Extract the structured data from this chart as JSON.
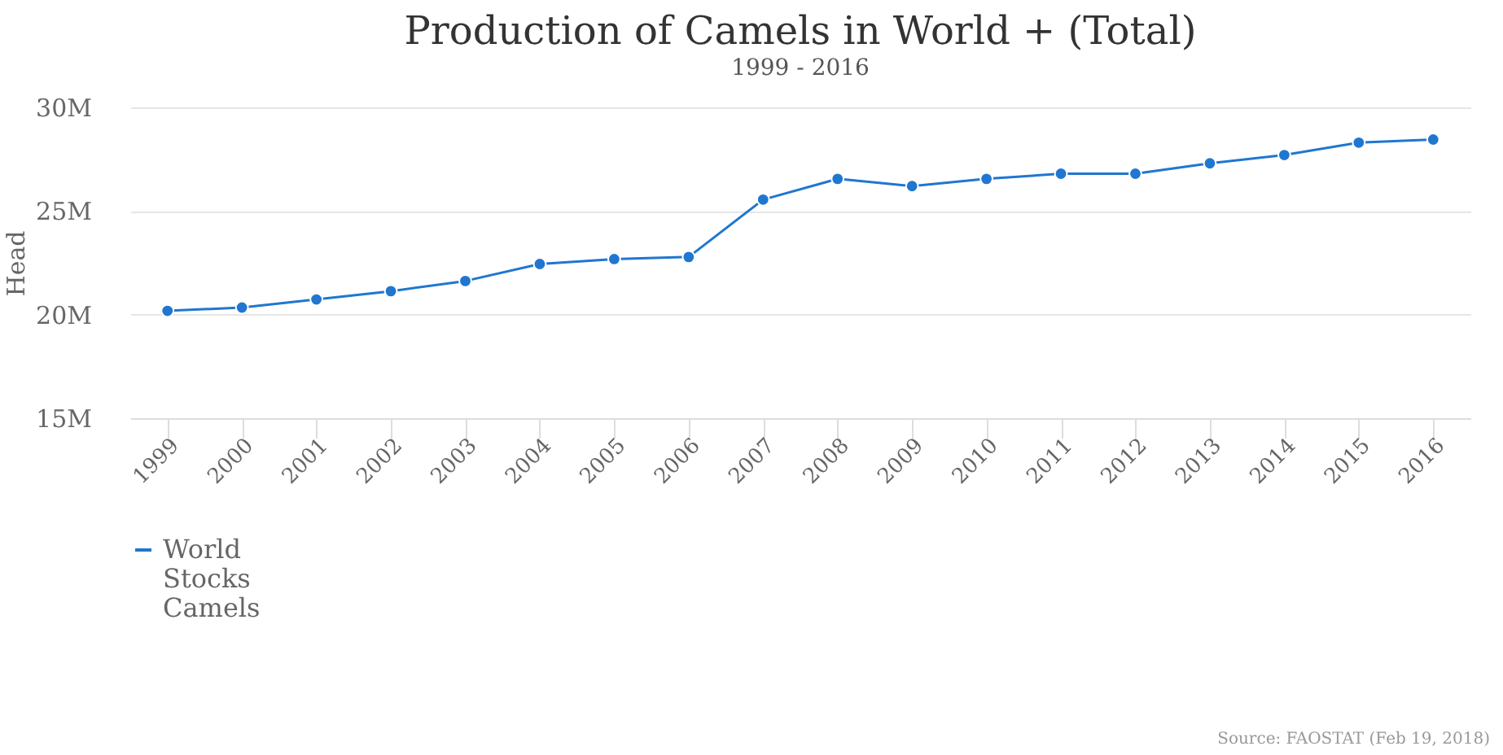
{
  "chart_data": {
    "type": "line",
    "title": "Production of Camels in World + (Total)",
    "subtitle": "1999 - 2016",
    "ylabel": "Head",
    "categories": [
      "1999",
      "2000",
      "2001",
      "2002",
      "2003",
      "2004",
      "2005",
      "2006",
      "2007",
      "2008",
      "2009",
      "2010",
      "2011",
      "2012",
      "2013",
      "2014",
      "2015",
      "2016"
    ],
    "series": [
      {
        "name": "World Stocks Camels",
        "color": "#1f77d0",
        "values": [
          20180000,
          20340000,
          20730000,
          21130000,
          21620000,
          22440000,
          22680000,
          22780000,
          25550000,
          26550000,
          26200000,
          26550000,
          26800000,
          26800000,
          27300000,
          27700000,
          28300000,
          28450000
        ]
      }
    ],
    "ylim": [
      15000000,
      30000000
    ],
    "yticks": [
      {
        "value": 15000000,
        "label": "15M"
      },
      {
        "value": 20000000,
        "label": "20M"
      },
      {
        "value": 25000000,
        "label": "25M"
      },
      {
        "value": 30000000,
        "label": "30M"
      }
    ],
    "grid": "y",
    "legend": "bottom",
    "marker": "circle",
    "line_style": "solid",
    "annotations": [
      "Source: FAOSTAT (Feb 19, 2018)"
    ]
  }
}
